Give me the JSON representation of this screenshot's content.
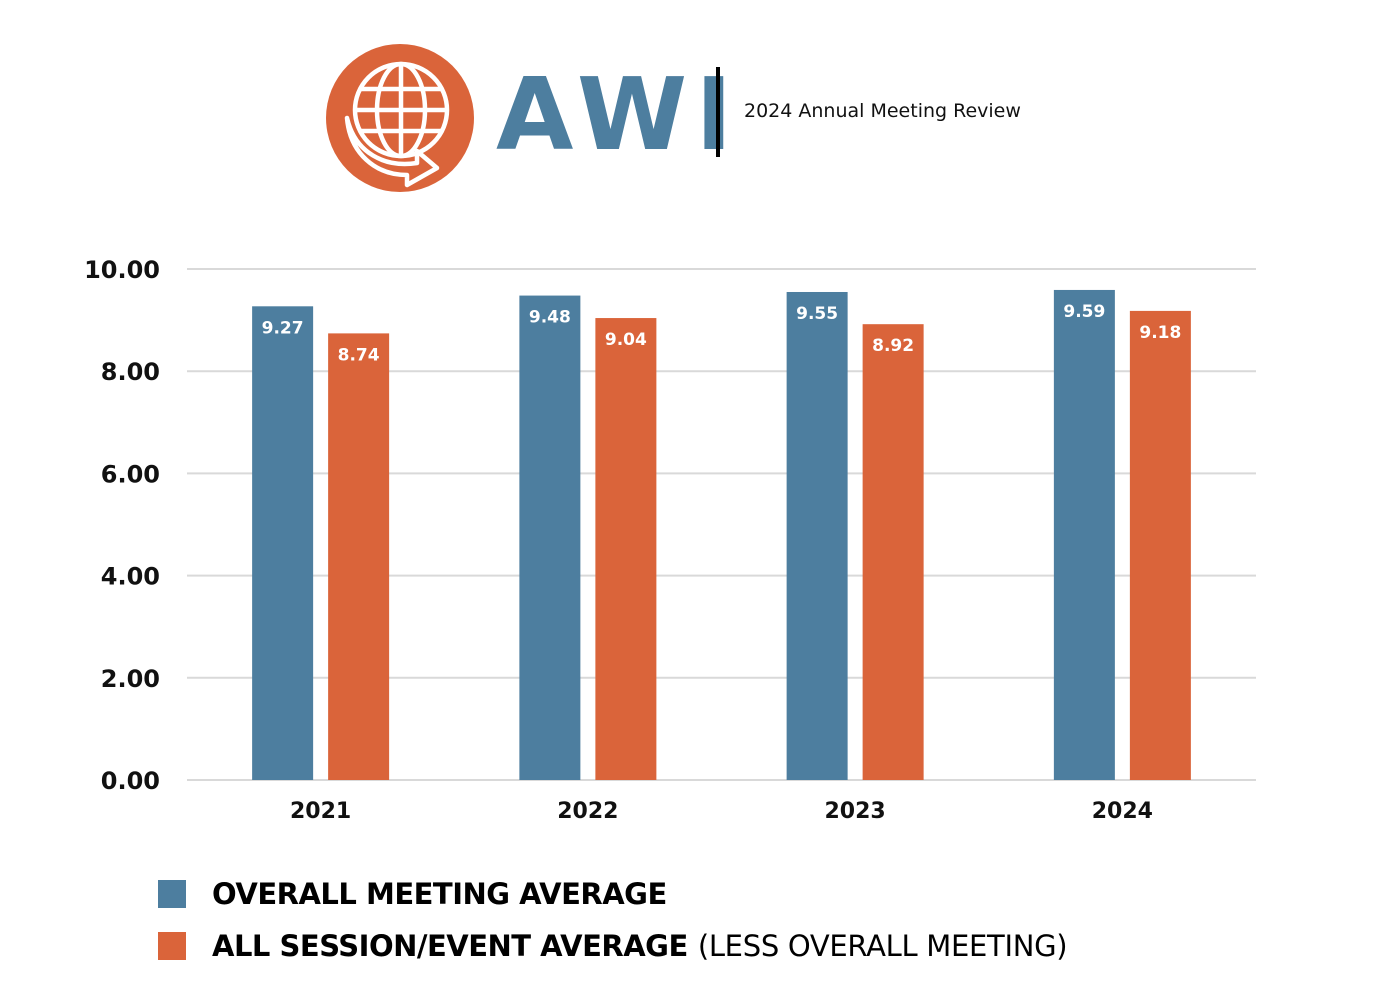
{
  "header": {
    "logo_text": "AWI",
    "logo_icon": "globe-arrow-icon",
    "subtitle": "2024 Annual Meeting Review"
  },
  "colors": {
    "brand_blue": "#4D7E9F",
    "brand_orange": "#DA643A",
    "gridline": "#D9D9D9",
    "text": "#111111"
  },
  "legend": {
    "items": [
      {
        "label": "OVERALL MEETING AVERAGE",
        "suffix": "",
        "color": "#4D7E9F"
      },
      {
        "label": "ALL SESSION/EVENT AVERAGE",
        "suffix": "(LESS OVERALL MEETING)",
        "color": "#DA643A"
      }
    ]
  },
  "chart_data": {
    "type": "bar",
    "title": "",
    "xlabel": "",
    "ylabel": "",
    "categories": [
      "2021",
      "2022",
      "2023",
      "2024"
    ],
    "series": [
      {
        "name": "Overall Meeting Average",
        "color": "#4D7E9F",
        "values": [
          9.27,
          9.48,
          9.55,
          9.59
        ],
        "labels": [
          "9.27",
          "9.48",
          "9.55",
          "9.59"
        ]
      },
      {
        "name": "All Session/Event Average (Less Overall Meeting)",
        "color": "#DA643A",
        "values": [
          8.74,
          9.04,
          8.92,
          9.18
        ],
        "labels": [
          "8.74",
          "9.04",
          "8.92",
          "9.18"
        ]
      }
    ],
    "ylim": [
      0,
      10
    ],
    "yticks": [
      0,
      2,
      4,
      6,
      8,
      10
    ],
    "ytick_labels": [
      "0.00",
      "2.00",
      "4.00",
      "6.00",
      "8.00",
      "10.00"
    ],
    "grid": true,
    "legend_position": "bottom-left",
    "data_labels": "inside-top"
  }
}
